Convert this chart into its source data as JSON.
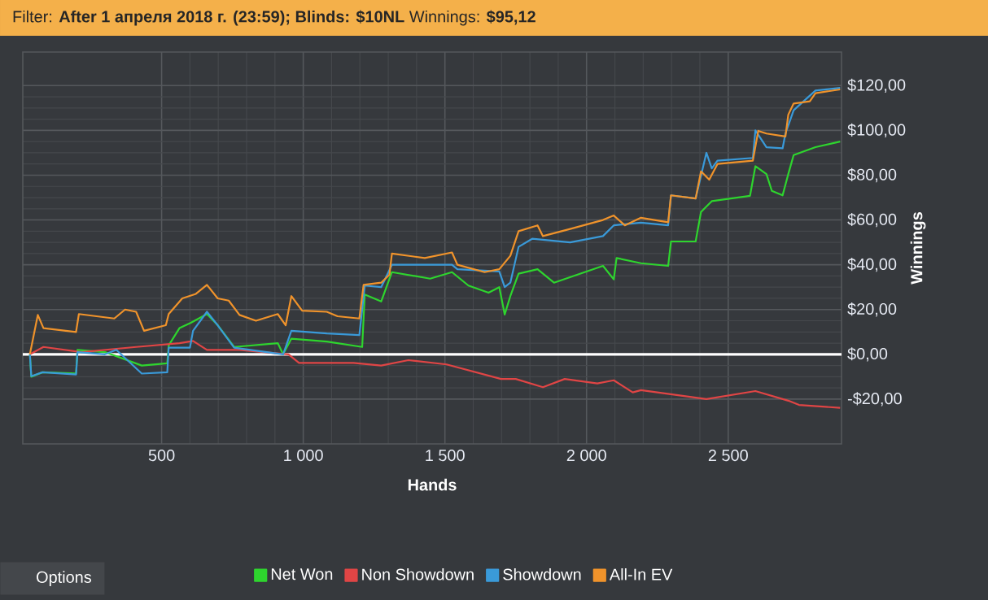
{
  "chart_data": {
    "type": "line",
    "title": "Filter: **After 1 апреля 2018 г. (23:59); Blinds: $10NL** Winnings: **$95,12**",
    "xlabel": "Hands",
    "ylabel": "Winnings",
    "xlim": [
      10,
      2900
    ],
    "ylim": [
      -40,
      135
    ],
    "xticks": [
      500,
      {
        "value": 1000,
        "label": "1 000"
      },
      {
        "value": 1500,
        "label": "1 500"
      },
      {
        "value": 2000,
        "label": "2 000"
      },
      {
        "value": 2500,
        "label": "2 500"
      }
    ],
    "yticks": [
      {
        "value": -20,
        "label": "-$20,00"
      },
      {
        "value": 0,
        "label": "$0,00"
      },
      {
        "value": 20,
        "label": "$20,00"
      },
      {
        "value": 40,
        "label": "$40,00"
      },
      {
        "value": 60,
        "label": "$60,00"
      },
      {
        "value": 80,
        "label": "$80,00"
      },
      {
        "value": 100,
        "label": "$100,00"
      },
      {
        "value": 120,
        "label": "$120,00"
      }
    ],
    "grid": true,
    "legend": "bottom",
    "line_style": "solid",
    "ref_lines": [
      {
        "axis": "y",
        "value": 0,
        "color": "#ffffff"
      }
    ],
    "annotations": [
      "Options"
    ],
    "series": [
      {
        "name": "Net Won",
        "color": "#2ed52e",
        "x": [
          35,
          40,
          80,
          198,
          203,
          300,
          430,
          520,
          525,
          563,
          602,
          660,
          698,
          756,
          910,
          929,
          958,
          1083,
          1208,
          1217,
          1275,
          1313,
          1448,
          1525,
          1583,
          1654,
          1692,
          1711,
          1731,
          1760,
          1827,
          1885,
          2058,
          2096,
          2106,
          2192,
          2288,
          2298,
          2385,
          2404,
          2442,
          2577,
          2596,
          2635,
          2654,
          2692,
          2712,
          2731,
          2808,
          2895
        ],
        "values": [
          0,
          -10,
          -8,
          -8.5,
          2,
          1,
          -5,
          -4,
          4,
          11.7,
          14,
          18,
          13,
          3.3,
          5,
          0,
          7,
          5.7,
          3.3,
          26.7,
          23.6,
          36.7,
          33.8,
          36.7,
          30.7,
          27.5,
          30,
          17.8,
          26,
          36,
          38,
          32,
          39.5,
          33.5,
          43,
          40.7,
          39.5,
          50.4,
          50.4,
          63.6,
          68.4,
          70.8,
          84,
          80.5,
          73,
          71,
          80.5,
          89,
          92.5,
          95
        ]
      },
      {
        "name": "Non Showdown",
        "color": "#e04545",
        "x": [
          35,
          83,
          217,
          410,
          563,
          611,
          660,
          775,
          948,
          985,
          1177,
          1275,
          1371,
          1506,
          1698,
          1750,
          1846,
          1923,
          2038,
          2096,
          2163,
          2192,
          2423,
          2596,
          2712,
          2750,
          2895
        ],
        "values": [
          0,
          3.3,
          1,
          3.3,
          5,
          6,
          2,
          2,
          0,
          -3.8,
          -3.8,
          -5,
          -2.6,
          -4.5,
          -11,
          -11,
          -14.7,
          -11,
          -13,
          -11.6,
          -17,
          -16,
          -20,
          -16.4,
          -20.7,
          -22.6,
          -23.9
        ]
      },
      {
        "name": "Showdown",
        "color": "#3a9ad9",
        "x": [
          35,
          40,
          80,
          198,
          203,
          300,
          340,
          430,
          520,
          525,
          600,
          611,
          660,
          698,
          756,
          929,
          958,
          1083,
          1198,
          1217,
          1275,
          1313,
          1525,
          1544,
          1692,
          1711,
          1731,
          1760,
          1808,
          1942,
          2058,
          2096,
          2192,
          2288,
          2298,
          2385,
          2423,
          2442,
          2462,
          2587,
          2596,
          2635,
          2692,
          2702,
          2731,
          2808,
          2895
        ],
        "values": [
          0,
          -9.8,
          -8,
          -9,
          1,
          0,
          2,
          -8.6,
          -8,
          3,
          3,
          10.5,
          19,
          13,
          3,
          0,
          10.5,
          9.3,
          8.6,
          30.7,
          30,
          40,
          40,
          38,
          37,
          30,
          32,
          48,
          51.6,
          50,
          52.8,
          57.6,
          58.8,
          57.6,
          71,
          69.6,
          90,
          83,
          86.5,
          87.7,
          100,
          92.5,
          92,
          98.6,
          109,
          117.8,
          119
        ]
      },
      {
        "name": "All-In EV",
        "color": "#f0932b",
        "x": [
          35,
          63,
          83,
          198,
          208,
          333,
          371,
          410,
          438,
          515,
          525,
          573,
          621,
          660,
          698,
          737,
          775,
          833,
          910,
          938,
          958,
          996,
          1083,
          1121,
          1198,
          1213,
          1275,
          1304,
          1313,
          1429,
          1525,
          1544,
          1640,
          1692,
          1731,
          1760,
          1827,
          1846,
          1942,
          2058,
          2096,
          2135,
          2192,
          2288,
          2298,
          2385,
          2404,
          2433,
          2462,
          2587,
          2606,
          2635,
          2702,
          2712,
          2731,
          2788,
          2808,
          2895
        ],
        "values": [
          0,
          17.6,
          11.7,
          10,
          18,
          16,
          20,
          19,
          10.5,
          13,
          18,
          25,
          27,
          31,
          25,
          24,
          17.6,
          15,
          18,
          13,
          26,
          19.5,
          19,
          17,
          16,
          31,
          32,
          35.5,
          45,
          43,
          45.5,
          40,
          36.7,
          38,
          44,
          55,
          57.6,
          52.8,
          56,
          60,
          62,
          57.6,
          61,
          59,
          71,
          69.6,
          81.7,
          78,
          85,
          86.5,
          99.8,
          98.6,
          97.3,
          107,
          112,
          113,
          116.6,
          118.3
        ]
      }
    ]
  }
}
